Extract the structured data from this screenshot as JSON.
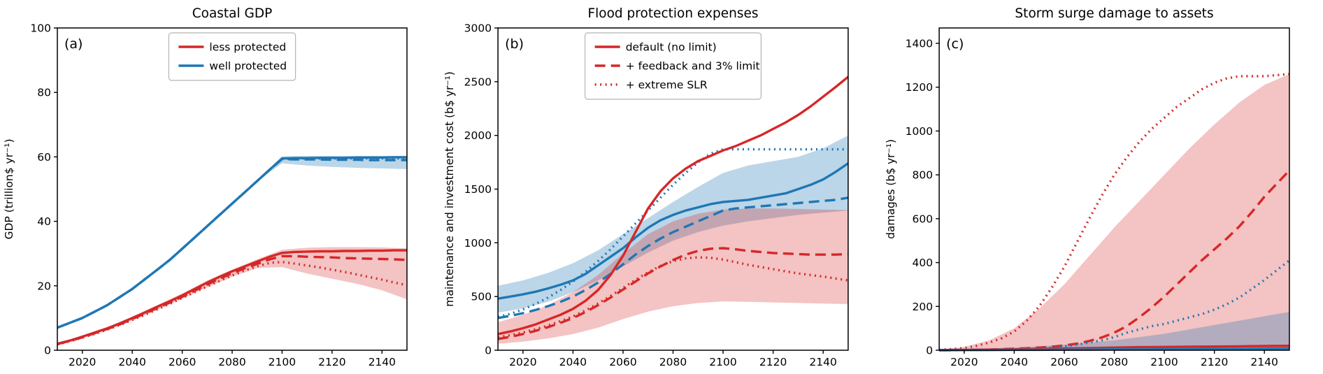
{
  "figure": {
    "background": "#ffffff"
  },
  "palette": {
    "red": "#d62728",
    "blue": "#1f77b4",
    "axis": "#000000",
    "legend_border": "#b5b5b5"
  },
  "chart_data": [
    {
      "type": "line",
      "panel_label": "(a)",
      "title": "Coastal GDP",
      "ylabel": "GDP (trillion$ yr⁻¹)",
      "xlabel": "",
      "xlim": [
        2010,
        2150
      ],
      "ylim": [
        0,
        100
      ],
      "xticks": [
        2020,
        2040,
        2060,
        2080,
        2100,
        2120,
        2140
      ],
      "yticks": [
        0,
        20,
        40,
        60,
        80,
        100
      ],
      "grid": false,
      "legend": {
        "loc": "upper center",
        "entries": [
          {
            "label": "less protected",
            "color": "red",
            "style": "solid"
          },
          {
            "label": "well protected",
            "color": "blue",
            "style": "solid"
          }
        ]
      },
      "bands": [
        {
          "name": "well-protected-range",
          "color": "blue",
          "opacity": 0.3,
          "x_start": 2010,
          "x_step": 10,
          "lower": [
            7,
            10,
            14,
            19,
            25,
            31.5,
            38.5,
            45.5,
            52.5,
            58,
            57.3,
            56.9,
            56.6,
            56.4,
            56.2
          ],
          "upper": [
            7.2,
            10.3,
            14.3,
            19.3,
            25.3,
            31.8,
            38.8,
            45.8,
            52.8,
            60.2,
            60.3,
            60.3,
            60.3,
            60.3,
            60.3
          ]
        },
        {
          "name": "less-protected-range",
          "color": "red",
          "opacity": 0.28,
          "x_start": 2010,
          "x_step": 10,
          "lower": [
            1.8,
            3.8,
            6.2,
            9.2,
            12.5,
            16,
            19.5,
            22.8,
            25.5,
            25.8,
            23.8,
            22.2,
            20.6,
            18.6,
            15.8
          ],
          "upper": [
            2.2,
            4.5,
            7.2,
            10.4,
            14,
            17.6,
            21.6,
            25,
            28.2,
            31.2,
            31.8,
            32,
            32,
            31.9,
            31.6
          ]
        }
      ],
      "series": [
        {
          "name": "well-protected-extreme-slr",
          "color": "blue",
          "style": "dotted",
          "x_start": 2010,
          "x_step": 5,
          "values": [
            7,
            8.5,
            10,
            12,
            14,
            16.5,
            19,
            22,
            25,
            28,
            31.5,
            35,
            38.5,
            42,
            45.5,
            49,
            52.5,
            56,
            59.4,
            59.5,
            59.5,
            59.5,
            59.5,
            59.5,
            59.5,
            59.5,
            59.5,
            59.5,
            59.5
          ]
        },
        {
          "name": "well-protected-feedback-limit",
          "color": "blue",
          "style": "dashed",
          "x_start": 2010,
          "x_step": 5,
          "values": [
            7,
            8.5,
            10,
            12,
            14,
            16.5,
            19,
            22,
            25,
            28,
            31.5,
            35,
            38.5,
            42,
            45.5,
            49,
            52.5,
            56,
            59.3,
            59.2,
            59.2,
            59.2,
            59.1,
            59.1,
            59.1,
            59.0,
            59.0,
            59.0,
            59.0
          ]
        },
        {
          "name": "less-protected-extreme-slr",
          "color": "red",
          "style": "dotted",
          "x_start": 2010,
          "x_step": 5,
          "values": [
            1.8,
            2.8,
            3.9,
            5.1,
            6.4,
            7.8,
            9.4,
            11,
            12.7,
            14.4,
            16.2,
            18,
            19.8,
            21.5,
            23.2,
            24.7,
            26,
            27.1,
            27.4,
            26.9,
            26.3,
            25.7,
            25,
            24.3,
            23.5,
            22.7,
            21.9,
            21,
            20.2
          ]
        },
        {
          "name": "less-protected-feedback-limit",
          "color": "red",
          "style": "dashed",
          "x_start": 2010,
          "x_step": 5,
          "values": [
            1.9,
            2.9,
            4,
            5.3,
            6.6,
            8,
            9.7,
            11.4,
            13.1,
            14.8,
            16.6,
            18.5,
            20.4,
            22.2,
            23.9,
            25.4,
            26.8,
            28.2,
            29.2,
            29.2,
            29,
            28.9,
            28.8,
            28.6,
            28.5,
            28.4,
            28.3,
            28.2,
            28
          ]
        },
        {
          "name": "well-protected-default",
          "color": "blue",
          "style": "solid",
          "x_start": 2010,
          "x_step": 5,
          "values": [
            7,
            8.5,
            10,
            12,
            14,
            16.5,
            19,
            22,
            25,
            28,
            31.5,
            35,
            38.5,
            42,
            45.5,
            49,
            52.5,
            56,
            59.5,
            59.6,
            59.6,
            59.7,
            59.7,
            59.7,
            59.8,
            59.8,
            59.8,
            59.9,
            59.9
          ]
        },
        {
          "name": "less-protected-default",
          "color": "red",
          "style": "solid",
          "x_start": 2010,
          "x_step": 5,
          "values": [
            2,
            3,
            4.2,
            5.5,
            6.8,
            8.3,
            10,
            11.7,
            13.5,
            15.2,
            17,
            19,
            21,
            22.8,
            24.5,
            26,
            27.5,
            29,
            30.2,
            30.5,
            30.6,
            30.7,
            30.7,
            30.8,
            30.8,
            30.9,
            30.9,
            31,
            31
          ]
        }
      ]
    },
    {
      "type": "line",
      "panel_label": "(b)",
      "title": "Flood protection expenses",
      "ylabel": "maintenance and investment cost (b$ yr⁻¹)",
      "xlabel": "",
      "xlim": [
        2010,
        2150
      ],
      "ylim": [
        0,
        3000
      ],
      "xticks": [
        2020,
        2040,
        2060,
        2080,
        2100,
        2120,
        2140
      ],
      "yticks": [
        0,
        500,
        1000,
        1500,
        2000,
        2500,
        3000
      ],
      "grid": false,
      "legend": {
        "loc": "upper center",
        "entries": [
          {
            "label": "default (no limit)",
            "color": "red",
            "style": "solid"
          },
          {
            "label": "+ feedback and 3% limit",
            "color": "red",
            "style": "dashed"
          },
          {
            "label": "+ extreme SLR",
            "color": "red",
            "style": "dotted"
          }
        ]
      },
      "bands": [
        {
          "name": "well-protected-cost-range",
          "color": "blue",
          "opacity": 0.3,
          "x_start": 2010,
          "x_step": 10,
          "lower": [
            350,
            390,
            450,
            540,
            650,
            780,
            910,
            1020,
            1100,
            1160,
            1200,
            1230,
            1260,
            1280,
            1300
          ],
          "upper": [
            600,
            650,
            720,
            810,
            930,
            1080,
            1230,
            1380,
            1520,
            1650,
            1720,
            1760,
            1800,
            1880,
            2000
          ]
        },
        {
          "name": "less-protected-cost-range",
          "color": "red",
          "opacity": 0.28,
          "x_start": 2010,
          "x_step": 10,
          "lower": [
            60,
            80,
            110,
            150,
            210,
            290,
            360,
            410,
            440,
            455,
            450,
            445,
            440,
            435,
            430
          ],
          "upper": [
            260,
            330,
            420,
            540,
            700,
            900,
            1080,
            1200,
            1270,
            1310,
            1320,
            1320,
            1315,
            1310,
            1305
          ]
        }
      ],
      "series": [
        {
          "name": "blue-extreme-slr",
          "color": "blue",
          "style": "dotted",
          "x_start": 2010,
          "x_step": 5,
          "values": [
            310,
            340,
            380,
            430,
            490,
            560,
            640,
            730,
            830,
            940,
            1060,
            1180,
            1300,
            1420,
            1540,
            1650,
            1750,
            1830,
            1870,
            1870,
            1870,
            1870,
            1870,
            1870,
            1870,
            1870,
            1870,
            1870,
            1870
          ]
        },
        {
          "name": "blue-feedback-limit",
          "color": "blue",
          "style": "dashed",
          "x_start": 2010,
          "x_step": 5,
          "values": [
            300,
            320,
            345,
            375,
            410,
            450,
            500,
            560,
            630,
            710,
            800,
            890,
            970,
            1040,
            1100,
            1150,
            1200,
            1250,
            1300,
            1320,
            1330,
            1340,
            1350,
            1360,
            1370,
            1380,
            1390,
            1400,
            1420
          ]
        },
        {
          "name": "red-extreme-slr",
          "color": "red",
          "style": "dotted",
          "x_start": 2010,
          "x_step": 5,
          "values": [
            120,
            140,
            165,
            195,
            230,
            270,
            315,
            370,
            435,
            505,
            580,
            655,
            725,
            785,
            830,
            855,
            865,
            860,
            845,
            820,
            795,
            775,
            755,
            735,
            715,
            700,
            685,
            668,
            650
          ]
        },
        {
          "name": "red-feedback-limit",
          "color": "red",
          "style": "dashed",
          "x_start": 2010,
          "x_step": 5,
          "values": [
            105,
            125,
            150,
            180,
            215,
            255,
            300,
            355,
            420,
            490,
            565,
            640,
            715,
            780,
            840,
            890,
            925,
            945,
            950,
            940,
            925,
            915,
            905,
            900,
            895,
            890,
            890,
            890,
            895
          ]
        },
        {
          "name": "blue-default",
          "color": "blue",
          "style": "solid",
          "x_start": 2010,
          "x_step": 5,
          "values": [
            480,
            500,
            520,
            545,
            575,
            610,
            650,
            710,
            790,
            870,
            950,
            1050,
            1140,
            1210,
            1260,
            1300,
            1330,
            1360,
            1380,
            1390,
            1400,
            1420,
            1440,
            1460,
            1500,
            1540,
            1590,
            1660,
            1740
          ]
        },
        {
          "name": "red-default",
          "color": "red",
          "style": "solid",
          "x_start": 2010,
          "x_step": 5,
          "values": [
            150,
            175,
            205,
            240,
            285,
            330,
            385,
            460,
            560,
            700,
            880,
            1100,
            1320,
            1480,
            1600,
            1690,
            1760,
            1810,
            1860,
            1900,
            1950,
            2000,
            2060,
            2120,
            2190,
            2270,
            2360,
            2450,
            2545
          ]
        }
      ]
    },
    {
      "type": "line",
      "panel_label": "(c)",
      "title": "Storm surge damage to assets",
      "ylabel": "damages (b$ yr⁻¹)",
      "xlabel": "",
      "xlim": [
        2010,
        2150
      ],
      "ylim": [
        0,
        1470
      ],
      "xticks": [
        2020,
        2040,
        2060,
        2080,
        2100,
        2120,
        2140
      ],
      "yticks": [
        0,
        200,
        400,
        600,
        800,
        1000,
        1200,
        1400
      ],
      "grid": false,
      "bands": [
        {
          "name": "less-protected-damage-range",
          "color": "red",
          "opacity": 0.28,
          "x_start": 2010,
          "x_step": 10,
          "lower": [
            0,
            0,
            0,
            0,
            0,
            0,
            0,
            0,
            0,
            0,
            0,
            0,
            0,
            0,
            0
          ],
          "upper": [
            3,
            15,
            45,
            100,
            190,
            300,
            430,
            560,
            680,
            800,
            920,
            1030,
            1130,
            1210,
            1260
          ]
        },
        {
          "name": "well-protected-damage-range",
          "color": "blue",
          "opacity": 0.3,
          "x_start": 2010,
          "x_step": 10,
          "lower": [
            0,
            0,
            0,
            0,
            0,
            0,
            0,
            0,
            0,
            0,
            0,
            0,
            0,
            0,
            0
          ],
          "upper": [
            2,
            5,
            8,
            12,
            18,
            25,
            35,
            45,
            60,
            75,
            95,
            115,
            135,
            155,
            175
          ]
        }
      ],
      "series": [
        {
          "name": "red-extreme-slr",
          "color": "red",
          "style": "dotted",
          "x_start": 2010,
          "x_step": 5,
          "values": [
            2,
            5,
            10,
            20,
            35,
            55,
            85,
            135,
            200,
            285,
            380,
            490,
            600,
            705,
            800,
            880,
            950,
            1010,
            1060,
            1110,
            1150,
            1190,
            1220,
            1240,
            1250,
            1250,
            1250,
            1255,
            1260
          ]
        },
        {
          "name": "red-feedback-limit",
          "color": "red",
          "style": "dashed",
          "x_start": 2010,
          "x_step": 5,
          "values": [
            0,
            0,
            1,
            2,
            3,
            5,
            7,
            9,
            12,
            16,
            22,
            30,
            42,
            58,
            80,
            110,
            150,
            195,
            245,
            300,
            355,
            410,
            460,
            510,
            565,
            630,
            700,
            760,
            820
          ]
        },
        {
          "name": "blue-extreme-slr",
          "color": "blue",
          "style": "dotted",
          "x_start": 2010,
          "x_step": 5,
          "values": [
            0,
            0,
            1,
            1,
            2,
            3,
            4,
            6,
            8,
            12,
            18,
            25,
            35,
            45,
            60,
            80,
            95,
            110,
            120,
            135,
            150,
            165,
            185,
            210,
            240,
            280,
            320,
            365,
            410
          ]
        },
        {
          "name": "red-default",
          "color": "red",
          "style": "solid",
          "x_start": 2010,
          "x_step": 10,
          "values": [
            1,
            2,
            3,
            4,
            6,
            8,
            10,
            12,
            14,
            15,
            16,
            17,
            18,
            19,
            20
          ]
        },
        {
          "name": "blue-default",
          "color": "blue",
          "style": "solid",
          "x_start": 2010,
          "x_step": 10,
          "values": [
            0,
            1,
            1,
            2,
            2,
            3,
            3,
            4,
            4,
            5,
            5,
            6,
            6,
            7,
            8
          ]
        }
      ]
    }
  ]
}
